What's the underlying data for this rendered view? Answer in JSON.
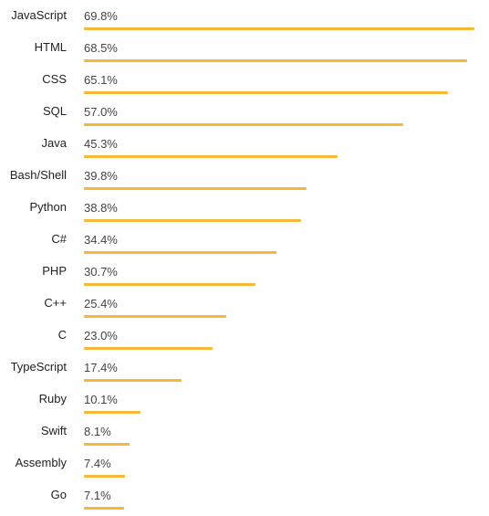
{
  "chart_data": {
    "type": "bar",
    "orientation": "horizontal",
    "categories": [
      "JavaScript",
      "HTML",
      "CSS",
      "SQL",
      "Java",
      "Bash/Shell",
      "Python",
      "C#",
      "PHP",
      "C++",
      "C",
      "TypeScript",
      "Ruby",
      "Swift",
      "Assembly",
      "Go"
    ],
    "values": [
      69.8,
      68.5,
      65.1,
      57.0,
      45.3,
      39.8,
      38.8,
      34.4,
      30.7,
      25.4,
      23.0,
      17.4,
      10.1,
      8.1,
      7.4,
      7.1
    ],
    "value_labels": [
      "69.8%",
      "68.5%",
      "65.1%",
      "57.0%",
      "45.3%",
      "39.8%",
      "38.8%",
      "34.4%",
      "30.7%",
      "25.4%",
      "23.0%",
      "17.4%",
      "10.1%",
      "8.1%",
      "7.4%",
      "7.1%"
    ],
    "title": "",
    "xlabel": "",
    "ylabel": "",
    "xlim": [
      0,
      69.8
    ],
    "grid": false,
    "legend": "none",
    "bar_color": "#F7B839"
  }
}
